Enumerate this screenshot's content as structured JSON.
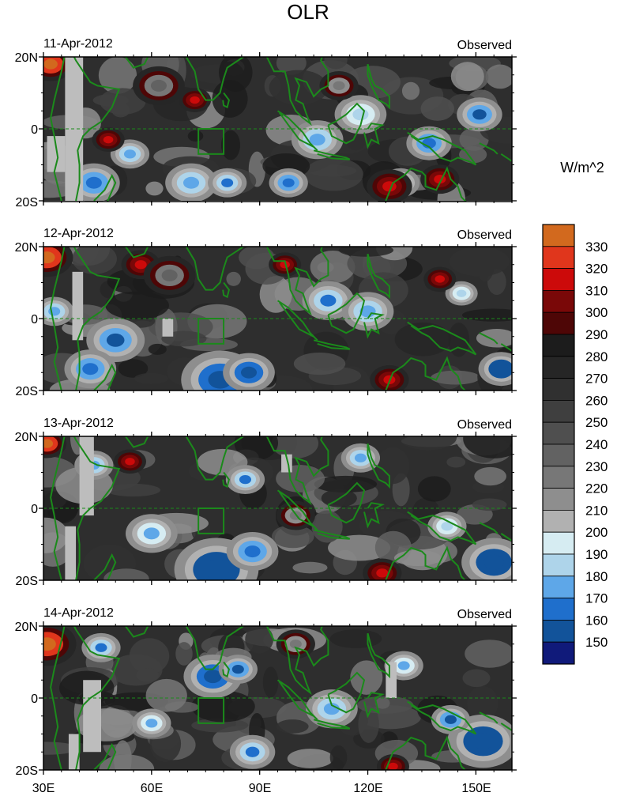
{
  "figure": {
    "title": "OLR",
    "colorbar_unit": "W/m^2"
  },
  "chart_data": {
    "type": "heatmap",
    "title": "OLR",
    "variable": "OLR",
    "units": "W/m^2",
    "xlim": [
      30,
      160
    ],
    "ylim": [
      -20,
      20
    ],
    "x_ticks": [
      {
        "value": 30,
        "label": "30E"
      },
      {
        "value": 60,
        "label": "60E"
      },
      {
        "value": 90,
        "label": "90E"
      },
      {
        "value": 120,
        "label": "120E"
      },
      {
        "value": 150,
        "label": "150E"
      }
    ],
    "y_ticks": [
      {
        "value": 20,
        "label": "20N"
      },
      {
        "value": 0,
        "label": "0"
      },
      {
        "value": -20,
        "label": "20S"
      }
    ],
    "colorbar": {
      "levels": [
        330,
        320,
        310,
        300,
        290,
        280,
        270,
        260,
        250,
        240,
        230,
        220,
        210,
        200,
        190,
        180,
        170,
        160,
        150
      ],
      "colors": [
        "#d2691e",
        "#e0361c",
        "#cc0a0a",
        "#7a0808",
        "#4e0606",
        "#1c1c1c",
        "#262626",
        "#303030",
        "#3f3f3f",
        "#4f4f4f",
        "#626262",
        "#777777",
        "#8e8e8e",
        "#b1b1b1",
        "#d6ecf2",
        "#aed4ea",
        "#5ea7e8",
        "#1f6fcc",
        "#12539a",
        "#101a7a"
      ]
    },
    "coastline_color": "#1b8a1b",
    "panels": [
      {
        "date": "11-Apr-2012",
        "label": "Observed"
      },
      {
        "date": "12-Apr-2012",
        "label": "Observed"
      },
      {
        "date": "13-Apr-2012",
        "label": "Observed"
      },
      {
        "date": "14-Apr-2012",
        "label": "Observed"
      }
    ],
    "features": [
      {
        "panel": 0,
        "lon": 32,
        "lat": 18,
        "r": 3.5,
        "v": 320
      },
      {
        "panel": 0,
        "lon": 54,
        "lat": -7,
        "r": 3,
        "v": 185
      },
      {
        "panel": 0,
        "lon": 44,
        "lat": -15,
        "r": 4,
        "v": 175
      },
      {
        "panel": 0,
        "lon": 71,
        "lat": -15,
        "r": 4,
        "v": 185
      },
      {
        "panel": 0,
        "lon": 81,
        "lat": -15,
        "r": 3,
        "v": 180
      },
      {
        "panel": 0,
        "lon": 98,
        "lat": -15,
        "r": 3,
        "v": 175
      },
      {
        "panel": 0,
        "lon": 106,
        "lat": -3,
        "r": 4,
        "v": 185
      },
      {
        "panel": 0,
        "lon": 118,
        "lat": 4,
        "r": 4,
        "v": 195
      },
      {
        "panel": 0,
        "lon": 137,
        "lat": -4,
        "r": 3.5,
        "v": 175
      },
      {
        "panel": 0,
        "lon": 151,
        "lat": 4,
        "r": 3.5,
        "v": 170
      },
      {
        "panel": 0,
        "lon": 129,
        "lat": -15,
        "r": 3,
        "v": 195
      },
      {
        "panel": 0,
        "lon": 126,
        "lat": -16,
        "r": 3.5,
        "v": 305
      },
      {
        "panel": 0,
        "lon": 48,
        "lat": -3,
        "r": 2.5,
        "v": 300
      },
      {
        "panel": 0,
        "lon": 72,
        "lat": 8,
        "r": 2.5,
        "v": 300
      },
      {
        "panel": 0,
        "lon": 140,
        "lat": -14,
        "r": 3,
        "v": 300
      },
      {
        "panel": 0,
        "lon": 62,
        "lat": 12,
        "r": 4,
        "v": 220
      },
      {
        "panel": 0,
        "lon": 112,
        "lat": 12,
        "r": 3,
        "v": 215
      },
      {
        "panel": 1,
        "lon": 31,
        "lat": 17,
        "r": 4,
        "v": 320
      },
      {
        "panel": 1,
        "lon": 33,
        "lat": 2,
        "r": 3,
        "v": 185
      },
      {
        "panel": 1,
        "lon": 50,
        "lat": -6,
        "r": 4.5,
        "v": 170
      },
      {
        "panel": 1,
        "lon": 43,
        "lat": -14,
        "r": 4,
        "v": 175
      },
      {
        "panel": 1,
        "lon": 79,
        "lat": -17,
        "r": 6,
        "v": 160
      },
      {
        "panel": 1,
        "lon": 87,
        "lat": -15,
        "r": 4,
        "v": 165
      },
      {
        "panel": 1,
        "lon": 109,
        "lat": 5,
        "r": 4,
        "v": 180
      },
      {
        "panel": 1,
        "lon": 120,
        "lat": 2,
        "r": 4,
        "v": 185
      },
      {
        "panel": 1,
        "lon": 157,
        "lat": -14,
        "r": 3.5,
        "v": 150
      },
      {
        "panel": 1,
        "lon": 146,
        "lat": 7,
        "r": 2.5,
        "v": 195
      },
      {
        "panel": 1,
        "lon": 126,
        "lat": -17,
        "r": 3,
        "v": 305
      },
      {
        "panel": 1,
        "lon": 57,
        "lat": 15,
        "r": 3,
        "v": 300
      },
      {
        "panel": 1,
        "lon": 97,
        "lat": 15,
        "r": 2.5,
        "v": 300
      },
      {
        "panel": 1,
        "lon": 140,
        "lat": 11,
        "r": 2.5,
        "v": 300
      },
      {
        "panel": 1,
        "lon": 65,
        "lat": 12,
        "r": 4,
        "v": 225
      },
      {
        "panel": 2,
        "lon": 31,
        "lat": 18,
        "r": 3,
        "v": 320
      },
      {
        "panel": 2,
        "lon": 78,
        "lat": -17,
        "r": 6.5,
        "v": 150
      },
      {
        "panel": 2,
        "lon": 88,
        "lat": -12,
        "r": 4,
        "v": 175
      },
      {
        "panel": 2,
        "lon": 155,
        "lat": -15,
        "r": 5,
        "v": 150
      },
      {
        "panel": 2,
        "lon": 60,
        "lat": -7,
        "r": 4,
        "v": 190
      },
      {
        "panel": 2,
        "lon": 44,
        "lat": 12,
        "r": 3,
        "v": 185
      },
      {
        "panel": 2,
        "lon": 86,
        "lat": 8,
        "r": 3,
        "v": 180
      },
      {
        "panel": 2,
        "lon": 118,
        "lat": 14,
        "r": 3,
        "v": 185
      },
      {
        "panel": 2,
        "lon": 142,
        "lat": -5,
        "r": 3,
        "v": 195
      },
      {
        "panel": 2,
        "lon": 54,
        "lat": 13,
        "r": 2.5,
        "v": 300
      },
      {
        "panel": 2,
        "lon": 124,
        "lat": -18,
        "r": 3,
        "v": 305
      },
      {
        "panel": 2,
        "lon": 100,
        "lat": -2,
        "r": 3,
        "v": 215
      },
      {
        "panel": 3,
        "lon": 31,
        "lat": 15,
        "r": 4.5,
        "v": 320
      },
      {
        "panel": 3,
        "lon": 77,
        "lat": 6,
        "r": 4.5,
        "v": 160
      },
      {
        "panel": 3,
        "lon": 84,
        "lat": 8,
        "r": 3,
        "v": 170
      },
      {
        "panel": 3,
        "lon": 110,
        "lat": -3,
        "r": 4,
        "v": 185
      },
      {
        "panel": 3,
        "lon": 152,
        "lat": -12,
        "r": 5.5,
        "v": 150
      },
      {
        "panel": 3,
        "lon": 143,
        "lat": -6,
        "r": 3,
        "v": 170
      },
      {
        "panel": 3,
        "lon": 46,
        "lat": 14,
        "r": 3,
        "v": 180
      },
      {
        "panel": 3,
        "lon": 60,
        "lat": -7,
        "r": 3,
        "v": 190
      },
      {
        "panel": 3,
        "lon": 88,
        "lat": -15,
        "r": 3.5,
        "v": 180
      },
      {
        "panel": 3,
        "lon": 127,
        "lat": -19,
        "r": 2.5,
        "v": 305
      },
      {
        "panel": 3,
        "lon": 130,
        "lat": 9,
        "r": 3,
        "v": 190
      },
      {
        "panel": 3,
        "lon": 100,
        "lat": 15,
        "r": 3,
        "v": 215
      }
    ],
    "gray_boxes": [
      {
        "panel": 0,
        "lon0": 36,
        "lon1": 41,
        "lat0": -20,
        "lat1": 20
      },
      {
        "panel": 0,
        "lon0": 31,
        "lon1": 36,
        "lat0": -12,
        "lat1": -2
      },
      {
        "panel": 1,
        "lon0": 38,
        "lon1": 41,
        "lat0": -6,
        "lat1": 13
      },
      {
        "panel": 1,
        "lon0": 63,
        "lon1": 66,
        "lat0": -5,
        "lat1": 0
      },
      {
        "panel": 2,
        "lon0": 36,
        "lon1": 39,
        "lat0": -20,
        "lat1": -5
      },
      {
        "panel": 2,
        "lon0": 40,
        "lon1": 44,
        "lat0": -2,
        "lat1": 20
      },
      {
        "panel": 2,
        "lon0": 96,
        "lon1": 99,
        "lat0": 10,
        "lat1": 15
      },
      {
        "panel": 3,
        "lon0": 37,
        "lon1": 40,
        "lat0": -20,
        "lat1": -10
      },
      {
        "panel": 3,
        "lon0": 41,
        "lon1": 46,
        "lat0": -15,
        "lat1": 5
      },
      {
        "panel": 3,
        "lon0": 125,
        "lon1": 128,
        "lat0": 0,
        "lat1": 10
      }
    ],
    "box_region": {
      "lon0": 73,
      "lon1": 80,
      "lat0": -7,
      "lat1": 0
    }
  }
}
